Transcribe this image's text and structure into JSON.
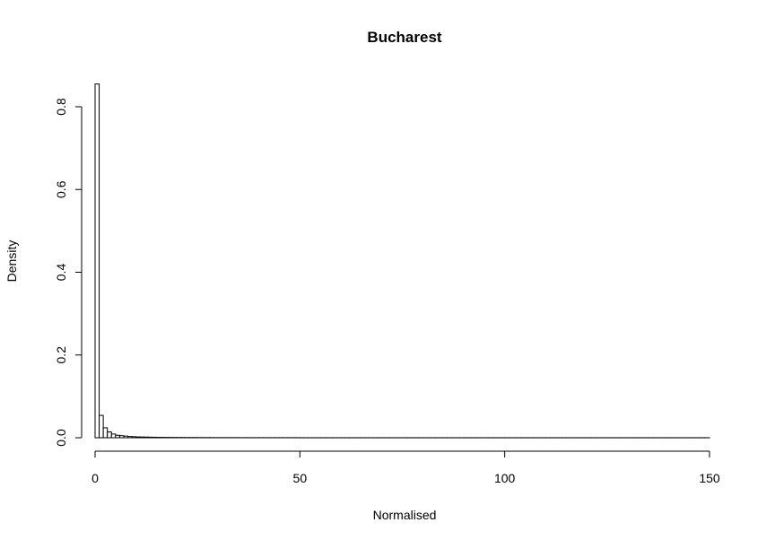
{
  "chart_data": {
    "type": "bar",
    "title": "Bucharest",
    "xlabel": "Normalised",
    "ylabel": "Density",
    "xlim": [
      0,
      150
    ],
    "ylim": [
      0,
      0.85
    ],
    "x_ticks": [
      0,
      50,
      100,
      150
    ],
    "x_tick_labels": [
      "0",
      "50",
      "100",
      "150"
    ],
    "y_ticks": [
      0.0,
      0.2,
      0.4,
      0.6,
      0.8
    ],
    "y_tick_labels": [
      "0.0",
      "0.2",
      "0.4",
      "0.6",
      "0.8"
    ],
    "grid": false,
    "bin_width": 1,
    "bin_starts": [
      0,
      1,
      2,
      3,
      4,
      5,
      6,
      7,
      8,
      9,
      10,
      11,
      12,
      13,
      14,
      15,
      16,
      17,
      18,
      19,
      20,
      21,
      22,
      23,
      24,
      25,
      26,
      27,
      28,
      29,
      30,
      31,
      32,
      33,
      34,
      35,
      36,
      37,
      38,
      39,
      40,
      41,
      42,
      43,
      44,
      45,
      46,
      47,
      48,
      49,
      50,
      51,
      52,
      53,
      54,
      55,
      56,
      57,
      58,
      59,
      60,
      61,
      62,
      63,
      64,
      65,
      66,
      67,
      68,
      69,
      70,
      71,
      72,
      73,
      74,
      75,
      76,
      77,
      78,
      79,
      80,
      81,
      82,
      83,
      84,
      85,
      86,
      87,
      88,
      89,
      90,
      91,
      92,
      93,
      94,
      95,
      96,
      97,
      98,
      99,
      100,
      101,
      102,
      103,
      104,
      105,
      106,
      107,
      108,
      109,
      110,
      111,
      112,
      113,
      114,
      115,
      116,
      117,
      118,
      119,
      120,
      121,
      122,
      123,
      124,
      125,
      126,
      127,
      128,
      129,
      130,
      131,
      132,
      133,
      134,
      135,
      136,
      137,
      138,
      139,
      140,
      141,
      142,
      143,
      144,
      145,
      146,
      147,
      148,
      149
    ],
    "values": [
      0.855,
      0.054,
      0.024,
      0.014,
      0.009,
      0.006,
      0.005,
      0.004,
      0.003,
      0.0025,
      0.002,
      0.0018,
      0.0016,
      0.0014,
      0.0012,
      0.001,
      0.0009,
      0.0008,
      0.0007,
      0.0007,
      0.0006,
      0.0006,
      0.0005,
      0.0005,
      0.0005,
      0.0004,
      0.0004,
      0.0004,
      0.0004,
      0.0003,
      0.0003,
      0.0003,
      0.0003,
      0.0003,
      0.0003,
      0.0002,
      0.0002,
      0.0002,
      0.0002,
      0.0002,
      0.0002,
      0.0002,
      0.0002,
      0.0002,
      0.0002,
      0.0002,
      0.0002,
      0.0002,
      0.0002,
      0.0002,
      0.0001,
      0.0001,
      0.0001,
      0.0001,
      0.0001,
      0.0001,
      0.0001,
      0.0001,
      0.0001,
      0.0001,
      0.0001,
      0.0001,
      0.0001,
      0.0001,
      0.0001,
      0.0001,
      0.0001,
      0.0001,
      0.0001,
      0.0001,
      0.0001,
      0.0001,
      0.0001,
      0.0001,
      0.0001,
      0.0001,
      0.0001,
      0.0001,
      0.0001,
      0.0001,
      0.0001,
      0.0001,
      0.0001,
      0.0001,
      0.0001,
      0.0001,
      0.0001,
      0.0001,
      0.0001,
      0.0001,
      0.0001,
      0.0001,
      0.0001,
      0.0001,
      0.0001,
      0.0001,
      0.0001,
      0.0001,
      0.0001,
      0.0001,
      0.0001,
      0.0001,
      0.0001,
      0.0001,
      0.0001,
      0.0001,
      0.0001,
      0.0001,
      0.0001,
      0.0001,
      0.0001,
      0.0001,
      0.0001,
      0.0001,
      0.0001,
      0.0001,
      0.0001,
      0.0001,
      0.0001,
      0.0001,
      0.0001,
      0.0001,
      0.0001,
      0.0001,
      0.0001,
      0.0001,
      0.0001,
      0.0001,
      0.0001,
      0.0001,
      0.0001,
      0.0001,
      0.0001,
      0.0001,
      0.0001,
      0.0001,
      0.0001,
      0.0001,
      0.0001,
      0.0001,
      0.0001,
      0.0001,
      0.0001,
      0.0001,
      0.0001,
      0.0001,
      0.0001,
      0.0001,
      0.0001,
      0.0001,
      0.0001,
      0.0001,
      0.0001,
      0.0001
    ]
  }
}
